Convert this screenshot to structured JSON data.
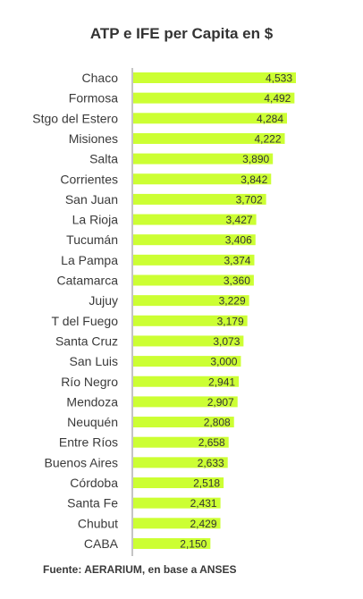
{
  "chart_data": {
    "type": "bar",
    "orientation": "horizontal",
    "title": "ATP e IFE per Capita en $",
    "source": "Fuente: AERARIUM, en base a ANSES",
    "categories": [
      "Chaco",
      "Formosa",
      "Stgo del Estero",
      "Misiones",
      "Salta",
      "Corrientes",
      "San Juan",
      "La Rioja",
      "Tucumán",
      "La Pampa",
      "Catamarca",
      "Jujuy",
      "T del Fuego",
      "Santa Cruz",
      "San Luis",
      "Río Negro",
      "Mendoza",
      "Neuquén",
      "Entre Ríos",
      "Buenos Aires",
      "Córdoba",
      "Santa Fe",
      "Chubut",
      "CABA"
    ],
    "values": [
      4533,
      4492,
      4284,
      4222,
      3890,
      3842,
      3702,
      3427,
      3406,
      3374,
      3360,
      3229,
      3179,
      3073,
      3000,
      2941,
      2907,
      2808,
      2658,
      2633,
      2518,
      2431,
      2429,
      2150
    ],
    "value_labels": [
      "4,533",
      "4,492",
      "4,284",
      "4,222",
      "3,890",
      "3,842",
      "3,702",
      "3,427",
      "3,406",
      "3,374",
      "3,360",
      "3,229",
      "3,179",
      "3,073",
      "3,000",
      "2,941",
      "2,907",
      "2,808",
      "2,658",
      "2,633",
      "2,518",
      "2,431",
      "2,429",
      "2,150"
    ],
    "bar_color": "#ccff33",
    "axis_color": "#9e9e9e",
    "grid": false,
    "legend": "none"
  }
}
